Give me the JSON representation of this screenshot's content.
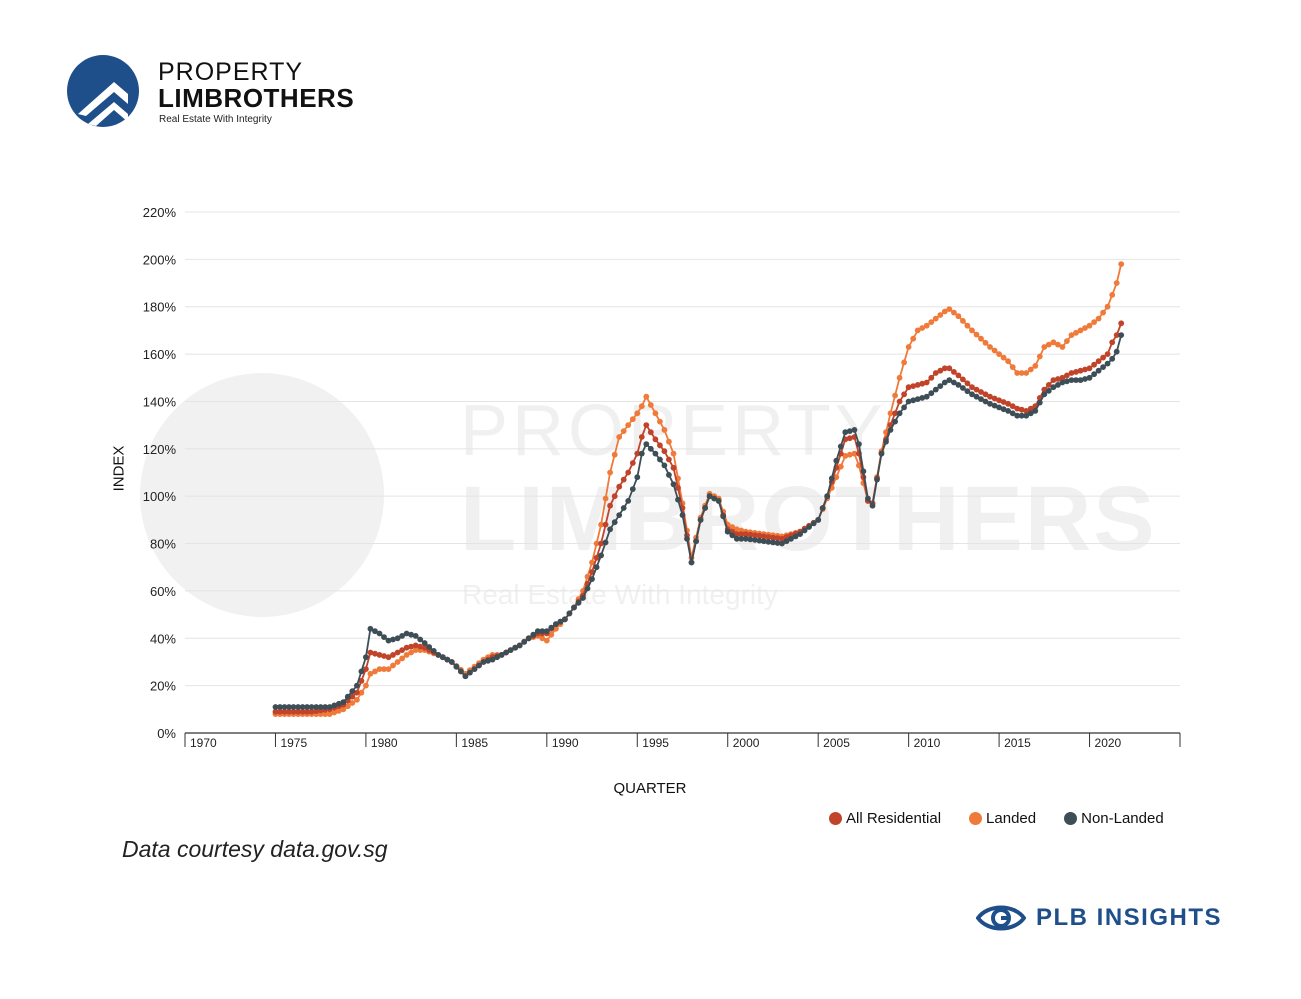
{
  "brand": {
    "line1": "PROPERTY",
    "line2": "LIMBROTHERS",
    "tagline": "Real Estate With Integrity",
    "color": "#1f4f8b"
  },
  "watermark": {
    "line1": "PROPERTY",
    "line2": "LIMBROTHERS",
    "tagline": "Real Estate With Integrity"
  },
  "source": "Data courtesy data.gov.sg",
  "footer_label": "PLB INSIGHTS",
  "legend": [
    {
      "label": "All Residential",
      "color": "#c0432a"
    },
    {
      "label": "Landed",
      "color": "#f07a3a"
    },
    {
      "label": "Non-Landed",
      "color": "#3d4e57"
    }
  ],
  "chart_data": {
    "type": "line",
    "xlabel": "QUARTER",
    "ylabel": "INDEX",
    "xlim": [
      1970,
      2025
    ],
    "ylim": [
      0,
      220
    ],
    "x_ticks": [
      1970,
      1975,
      1980,
      1985,
      1990,
      1995,
      2000,
      2005,
      2010,
      2015,
      2020
    ],
    "y_ticks": [
      "0%",
      "20%",
      "40%",
      "60%",
      "80%",
      "100%",
      "120%",
      "140%",
      "160%",
      "180%",
      "200%",
      "220%"
    ],
    "grid": "horizontal",
    "series": [
      {
        "name": "All Residential",
        "color": "#c0432a",
        "points": [
          [
            1975,
            9
          ],
          [
            1977,
            9
          ],
          [
            1978,
            10
          ],
          [
            1978.75,
            12
          ],
          [
            1979.5,
            17
          ],
          [
            1980,
            27
          ],
          [
            1980.25,
            34
          ],
          [
            1980.75,
            33
          ],
          [
            1981.25,
            32
          ],
          [
            1981.75,
            34
          ],
          [
            1982.25,
            36
          ],
          [
            1982.75,
            37
          ],
          [
            1983.25,
            36
          ],
          [
            1984,
            33
          ],
          [
            1984.75,
            30
          ],
          [
            1985.5,
            24
          ],
          [
            1986,
            27
          ],
          [
            1986.5,
            30
          ],
          [
            1987,
            32
          ],
          [
            1987.5,
            33
          ],
          [
            1988,
            35
          ],
          [
            1988.5,
            37
          ],
          [
            1989,
            40
          ],
          [
            1989.5,
            42
          ],
          [
            1990,
            42
          ],
          [
            1990.5,
            46
          ],
          [
            1991,
            48
          ],
          [
            1991.5,
            53
          ],
          [
            1992,
            58
          ],
          [
            1992.5,
            68
          ],
          [
            1993,
            80
          ],
          [
            1993.5,
            96
          ],
          [
            1994,
            104
          ],
          [
            1994.5,
            110
          ],
          [
            1995,
            118
          ],
          [
            1995.25,
            125
          ],
          [
            1995.5,
            130
          ],
          [
            1996,
            124
          ],
          [
            1996.5,
            119
          ],
          [
            1997,
            112
          ],
          [
            1997.5,
            95
          ],
          [
            1998,
            72
          ],
          [
            1998.5,
            90
          ],
          [
            1999,
            100
          ],
          [
            1999.5,
            98
          ],
          [
            2000,
            86
          ],
          [
            2000.5,
            84
          ],
          [
            2001,
            84
          ],
          [
            2002,
            83
          ],
          [
            2003,
            82
          ],
          [
            2004,
            85
          ],
          [
            2005,
            90
          ],
          [
            2005.5,
            100
          ],
          [
            2006,
            112
          ],
          [
            2006.5,
            124
          ],
          [
            2007,
            125
          ],
          [
            2007.25,
            118
          ],
          [
            2007.75,
            98
          ],
          [
            2008,
            97
          ],
          [
            2008.5,
            118
          ],
          [
            2009,
            130
          ],
          [
            2009.5,
            140
          ],
          [
            2010,
            146
          ],
          [
            2010.5,
            147
          ],
          [
            2011,
            148
          ],
          [
            2011.5,
            152
          ],
          [
            2012,
            154
          ],
          [
            2012.25,
            154
          ],
          [
            2012.75,
            151
          ],
          [
            2013.5,
            146
          ],
          [
            2014.5,
            142
          ],
          [
            2015.5,
            139
          ],
          [
            2016,
            137
          ],
          [
            2016.5,
            136
          ],
          [
            2017,
            138
          ],
          [
            2017.5,
            145
          ],
          [
            2018,
            149
          ],
          [
            2018.5,
            150
          ],
          [
            2019,
            152
          ],
          [
            2019.5,
            153
          ],
          [
            2020,
            154
          ],
          [
            2020.5,
            157
          ],
          [
            2021,
            160
          ],
          [
            2021.25,
            165
          ],
          [
            2021.5,
            168
          ],
          [
            2021.75,
            173
          ]
        ]
      },
      {
        "name": "Landed",
        "color": "#f07a3a",
        "points": [
          [
            1975,
            8
          ],
          [
            1977,
            8
          ],
          [
            1978,
            8
          ],
          [
            1978.75,
            10
          ],
          [
            1979.5,
            14
          ],
          [
            1980,
            20
          ],
          [
            1980.25,
            25
          ],
          [
            1980.75,
            27
          ],
          [
            1981.25,
            27
          ],
          [
            1981.75,
            30
          ],
          [
            1982.25,
            33
          ],
          [
            1982.75,
            35
          ],
          [
            1983.25,
            35
          ],
          [
            1984,
            33
          ],
          [
            1984.75,
            30
          ],
          [
            1985.5,
            25
          ],
          [
            1986,
            28
          ],
          [
            1986.5,
            31
          ],
          [
            1987,
            33
          ],
          [
            1987.5,
            33
          ],
          [
            1988,
            35
          ],
          [
            1988.5,
            37
          ],
          [
            1989,
            40
          ],
          [
            1989.5,
            41
          ],
          [
            1990,
            39
          ],
          [
            1990.5,
            44
          ],
          [
            1991,
            48
          ],
          [
            1991.5,
            53
          ],
          [
            1992,
            60
          ],
          [
            1992.5,
            72
          ],
          [
            1993,
            88
          ],
          [
            1993.5,
            110
          ],
          [
            1994,
            125
          ],
          [
            1994.5,
            130
          ],
          [
            1995,
            135
          ],
          [
            1995.25,
            138
          ],
          [
            1995.5,
            142
          ],
          [
            1996,
            135
          ],
          [
            1996.5,
            128
          ],
          [
            1997,
            118
          ],
          [
            1997.5,
            97
          ],
          [
            1998,
            74
          ],
          [
            1998.5,
            91
          ],
          [
            1999,
            101
          ],
          [
            1999.5,
            99
          ],
          [
            2000,
            88
          ],
          [
            2000.5,
            86
          ],
          [
            2001,
            85
          ],
          [
            2002,
            84
          ],
          [
            2003,
            83
          ],
          [
            2004,
            85
          ],
          [
            2005,
            90
          ],
          [
            2005.5,
            99
          ],
          [
            2006,
            108
          ],
          [
            2006.5,
            117
          ],
          [
            2007,
            118
          ],
          [
            2007.25,
            113
          ],
          [
            2007.75,
            98
          ],
          [
            2008,
            97
          ],
          [
            2008.5,
            119
          ],
          [
            2009,
            135
          ],
          [
            2009.5,
            150
          ],
          [
            2010,
            163
          ],
          [
            2010.5,
            170
          ],
          [
            2011,
            172
          ],
          [
            2011.5,
            175
          ],
          [
            2012,
            178
          ],
          [
            2012.25,
            179
          ],
          [
            2012.75,
            176
          ],
          [
            2013.5,
            170
          ],
          [
            2014.5,
            163
          ],
          [
            2015.5,
            157
          ],
          [
            2016,
            152
          ],
          [
            2016.5,
            152
          ],
          [
            2017,
            155
          ],
          [
            2017.5,
            163
          ],
          [
            2018,
            165
          ],
          [
            2018.5,
            163
          ],
          [
            2019,
            168
          ],
          [
            2019.5,
            170
          ],
          [
            2020,
            172
          ],
          [
            2020.5,
            175
          ],
          [
            2021,
            180
          ],
          [
            2021.25,
            185
          ],
          [
            2021.5,
            190
          ],
          [
            2021.75,
            198
          ]
        ]
      },
      {
        "name": "Non-Landed",
        "color": "#3d4e57",
        "points": [
          [
            1975,
            11
          ],
          [
            1977,
            11
          ],
          [
            1978,
            11
          ],
          [
            1978.75,
            13
          ],
          [
            1979.5,
            20
          ],
          [
            1980,
            32
          ],
          [
            1980.25,
            44
          ],
          [
            1980.75,
            42
          ],
          [
            1981.25,
            39
          ],
          [
            1981.75,
            40
          ],
          [
            1982.25,
            42
          ],
          [
            1982.75,
            41
          ],
          [
            1983.25,
            38
          ],
          [
            1984,
            33
          ],
          [
            1984.75,
            30
          ],
          [
            1985.5,
            24
          ],
          [
            1986,
            27
          ],
          [
            1986.5,
            30
          ],
          [
            1987,
            31
          ],
          [
            1987.5,
            33
          ],
          [
            1988,
            35
          ],
          [
            1988.5,
            37
          ],
          [
            1989,
            40
          ],
          [
            1989.5,
            43
          ],
          [
            1990,
            43
          ],
          [
            1990.5,
            46
          ],
          [
            1991,
            48
          ],
          [
            1991.5,
            53
          ],
          [
            1992,
            57
          ],
          [
            1992.5,
            65
          ],
          [
            1993,
            75
          ],
          [
            1993.5,
            86
          ],
          [
            1994,
            92
          ],
          [
            1994.5,
            98
          ],
          [
            1995,
            108
          ],
          [
            1995.25,
            118
          ],
          [
            1995.5,
            122
          ],
          [
            1996,
            118
          ],
          [
            1996.5,
            113
          ],
          [
            1997,
            105
          ],
          [
            1997.5,
            92
          ],
          [
            1998,
            72
          ],
          [
            1998.5,
            90
          ],
          [
            1999,
            100
          ],
          [
            1999.5,
            98
          ],
          [
            2000,
            85
          ],
          [
            2000.5,
            82
          ],
          [
            2001,
            82
          ],
          [
            2002,
            81
          ],
          [
            2003,
            80
          ],
          [
            2004,
            84
          ],
          [
            2005,
            90
          ],
          [
            2005.5,
            100
          ],
          [
            2006,
            115
          ],
          [
            2006.5,
            127
          ],
          [
            2007,
            128
          ],
          [
            2007.25,
            122
          ],
          [
            2007.75,
            99
          ],
          [
            2008,
            96
          ],
          [
            2008.5,
            118
          ],
          [
            2009,
            128
          ],
          [
            2009.5,
            135
          ],
          [
            2010,
            140
          ],
          [
            2010.5,
            141
          ],
          [
            2011,
            142
          ],
          [
            2011.5,
            145
          ],
          [
            2012,
            148
          ],
          [
            2012.25,
            149
          ],
          [
            2012.75,
            147
          ],
          [
            2013.5,
            143
          ],
          [
            2014.5,
            139
          ],
          [
            2015.5,
            136
          ],
          [
            2016,
            134
          ],
          [
            2016.5,
            134
          ],
          [
            2017,
            136
          ],
          [
            2017.5,
            143
          ],
          [
            2018,
            146
          ],
          [
            2018.5,
            148
          ],
          [
            2019,
            149
          ],
          [
            2019.5,
            149
          ],
          [
            2020,
            150
          ],
          [
            2020.5,
            153
          ],
          [
            2021,
            156
          ],
          [
            2021.25,
            158
          ],
          [
            2021.5,
            161
          ],
          [
            2021.75,
            168
          ]
        ]
      }
    ]
  }
}
